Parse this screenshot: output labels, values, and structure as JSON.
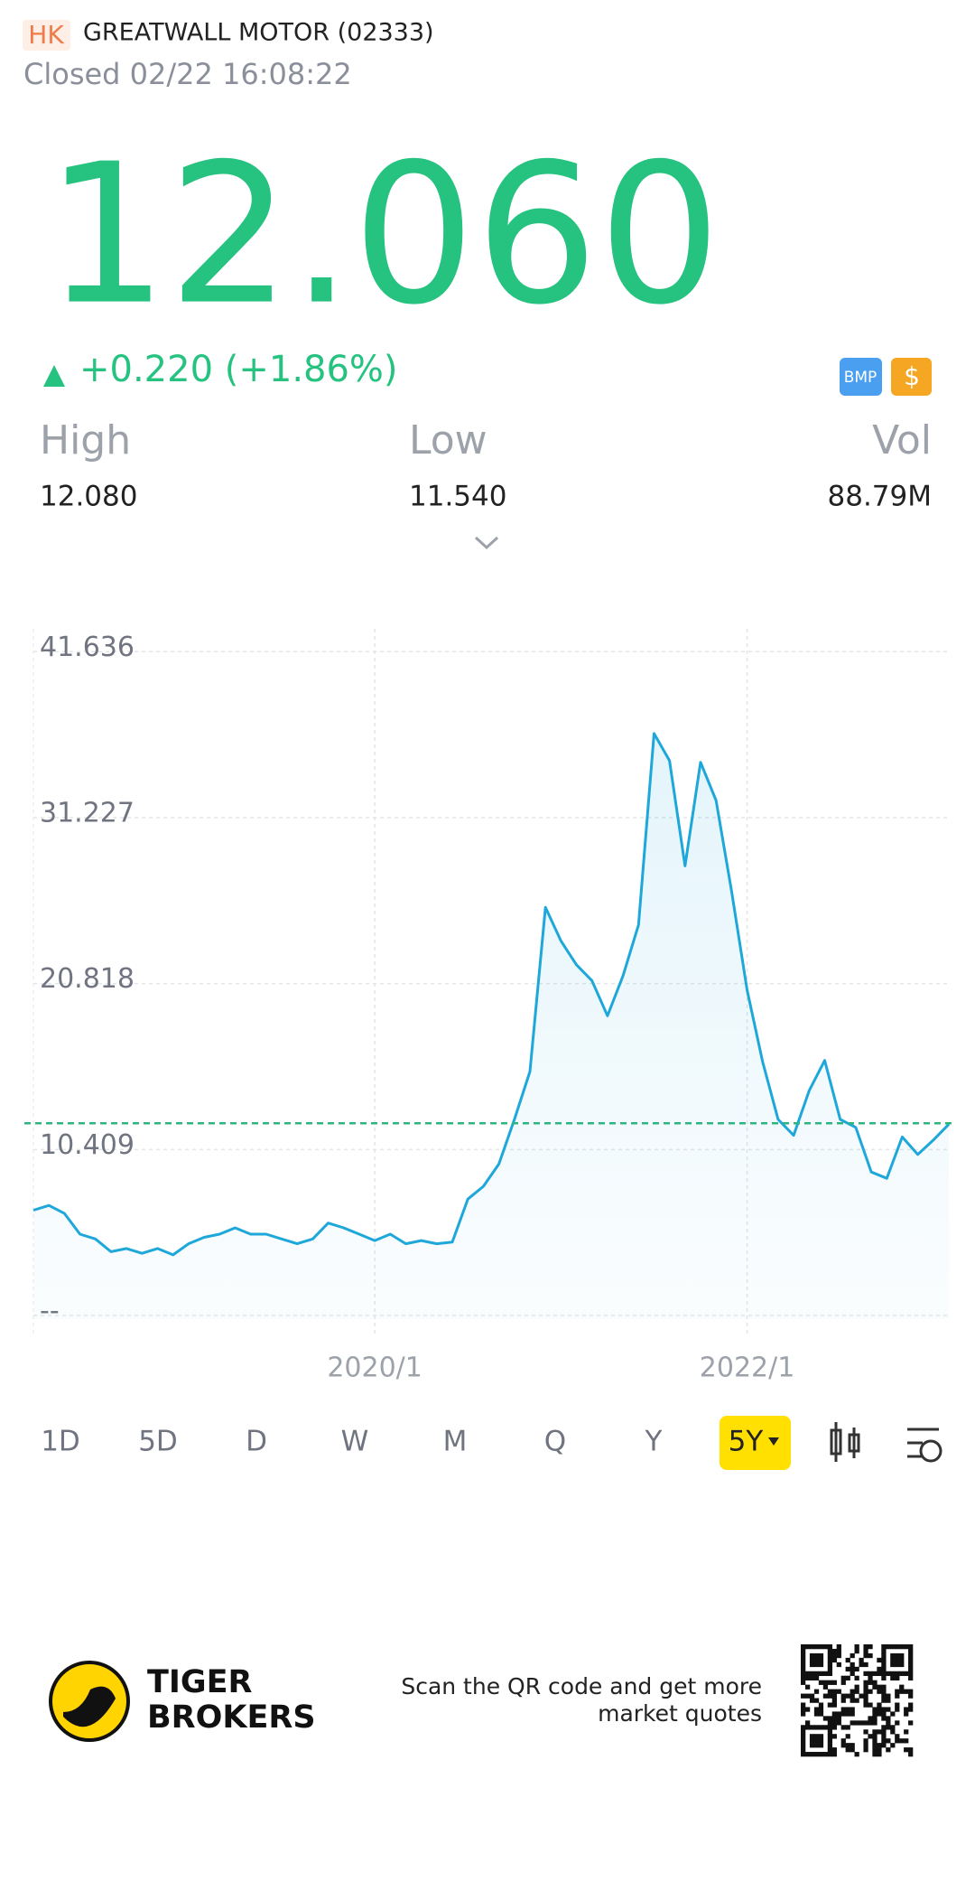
{
  "header": {
    "market": "HK",
    "name": "GREATWALL MOTOR (02333)",
    "status": "Closed 02/22 16:08:22",
    "price": "12.060",
    "change": "+0.220 (+1.86%)",
    "badges": [
      "BMP",
      "$"
    ]
  },
  "stats": [
    {
      "label": "High",
      "value": "12.080"
    },
    {
      "label": "Low",
      "value": "11.540"
    },
    {
      "label": "Vol",
      "value": "88.79M"
    }
  ],
  "chart_data": {
    "type": "line",
    "color": "#1ea7d9",
    "grid": true,
    "x": [
      "2018/3",
      "2018/4",
      "2018/5",
      "2018/6",
      "2018/7",
      "2018/8",
      "2018/9",
      "2018/10",
      "2018/11",
      "2018/12",
      "2019/1",
      "2019/2",
      "2019/3",
      "2019/4",
      "2019/5",
      "2019/6",
      "2019/7",
      "2019/8",
      "2019/9",
      "2019/10",
      "2019/11",
      "2019/12",
      "2020/1",
      "2020/2",
      "2020/3",
      "2020/4",
      "2020/5",
      "2020/6",
      "2020/7",
      "2020/8",
      "2020/9",
      "2020/10",
      "2020/11",
      "2020/12",
      "2021/1",
      "2021/2",
      "2021/3",
      "2021/4",
      "2021/5",
      "2021/6",
      "2021/7",
      "2021/8",
      "2021/9",
      "2021/10",
      "2021/11",
      "2021/12",
      "2022/1",
      "2022/2",
      "2022/3",
      "2022/4",
      "2022/5",
      "2022/6",
      "2022/7",
      "2022/8",
      "2022/9",
      "2022/10",
      "2022/11",
      "2022/12",
      "2023/1",
      "2023/2"
    ],
    "values": [
      6.6,
      6.9,
      6.4,
      5.1,
      4.8,
      4.0,
      4.2,
      3.9,
      4.2,
      3.8,
      4.5,
      4.9,
      5.1,
      5.5,
      5.1,
      5.1,
      4.8,
      4.5,
      4.8,
      5.8,
      5.5,
      5.1,
      4.7,
      5.1,
      4.5,
      4.7,
      4.5,
      4.6,
      7.3,
      8.1,
      9.5,
      12.3,
      15.3,
      25.6,
      23.5,
      22.0,
      21.0,
      18.8,
      21.3,
      24.5,
      36.5,
      34.8,
      28.2,
      34.7,
      32.3,
      26.6,
      20.4,
      15.9,
      12.3,
      11.3,
      14.1,
      16.0,
      12.3,
      11.8,
      9.0,
      8.6,
      11.2,
      10.1,
      11.0,
      12.0
    ],
    "xlim": [
      "2018/3",
      "2023/2"
    ],
    "xticks": [
      "2020/1",
      "2022/1"
    ],
    "ylim": [
      -1.36,
      43.07
    ],
    "yticks": [
      {
        "value": 0,
        "label": "--"
      },
      10.409,
      20.818,
      31.227,
      41.636
    ],
    "reference_line": 12.06,
    "reference_color": "#2cb57f"
  },
  "tabs": [
    "1D",
    "5D",
    "D",
    "W",
    "M",
    "Q",
    "Y",
    "5Y"
  ],
  "selected_tab": 7,
  "footer": {
    "brand": [
      "TIGER",
      "BROKERS"
    ],
    "note": [
      "Scan the QR code and get more",
      "market quotes"
    ]
  }
}
